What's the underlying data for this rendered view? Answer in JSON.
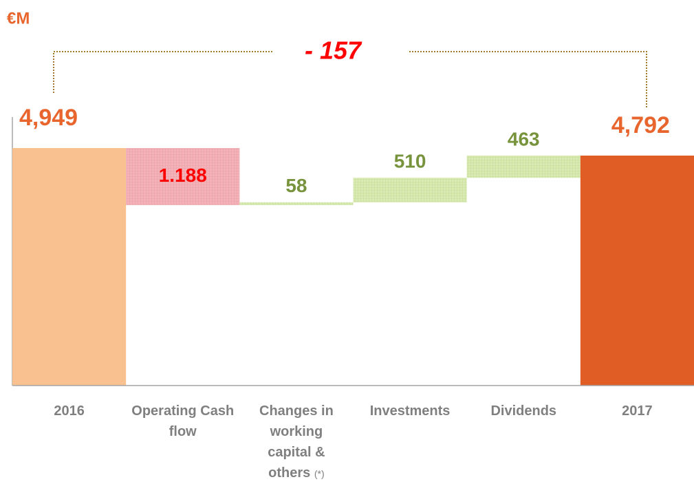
{
  "chart_data": {
    "type": "waterfall",
    "unit": "€M",
    "annotation": "- 157",
    "footnote_marker": "(*)",
    "categories": [
      "2016",
      "Operating Cash flow",
      "Changes in working capital & others",
      "Investments",
      "Dividends",
      "2017"
    ],
    "values": [
      4949,
      -1188,
      58,
      510,
      463,
      4792
    ],
    "value_labels": [
      "4,949",
      "1.188",
      "58",
      "510",
      "463",
      "4,792"
    ],
    "colors": {
      "start": "#f8c18f",
      "decrease": "#f2b4b9",
      "increase": "#d9eab4",
      "end": "#e05d25"
    },
    "label_colors": {
      "total": "#e8662e",
      "decrease": "#ff0000",
      "increase": "#77933c"
    },
    "ylim": [
      0,
      5000
    ]
  }
}
